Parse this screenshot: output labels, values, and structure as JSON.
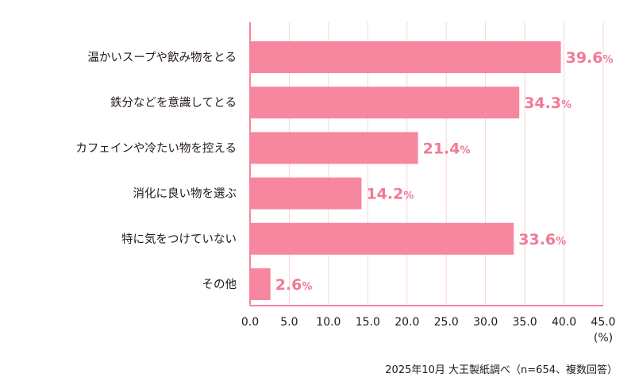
{
  "chart_data": {
    "type": "bar",
    "orientation": "horizontal",
    "categories": [
      "温かいスープや飲み物をとる",
      "鉄分などを意識してとる",
      "カフェインや冷たい物を控える",
      "消化に良い物を選ぶ",
      "特に気をつけていない",
      "その他"
    ],
    "values": [
      39.6,
      34.3,
      21.4,
      14.2,
      33.6,
      2.6
    ],
    "data_labels": [
      "39.6",
      "34.3",
      "21.4",
      "14.2",
      "33.6",
      "2.6"
    ],
    "label_unit": "%",
    "xlim": [
      0,
      45
    ],
    "x_ticks": [
      "0.0",
      "5.0",
      "10.0",
      "15.0",
      "20.0",
      "25.0",
      "30.0",
      "35.0",
      "40.0",
      "45.0"
    ],
    "xlabel": "(%)",
    "grid": "vertical",
    "bar_color": "#f7869f",
    "label_color": "#f27a95",
    "grid_color": "#f9d3dc"
  },
  "footer": "2025年10月 大王製紙調べ（n=654、複数回答）"
}
